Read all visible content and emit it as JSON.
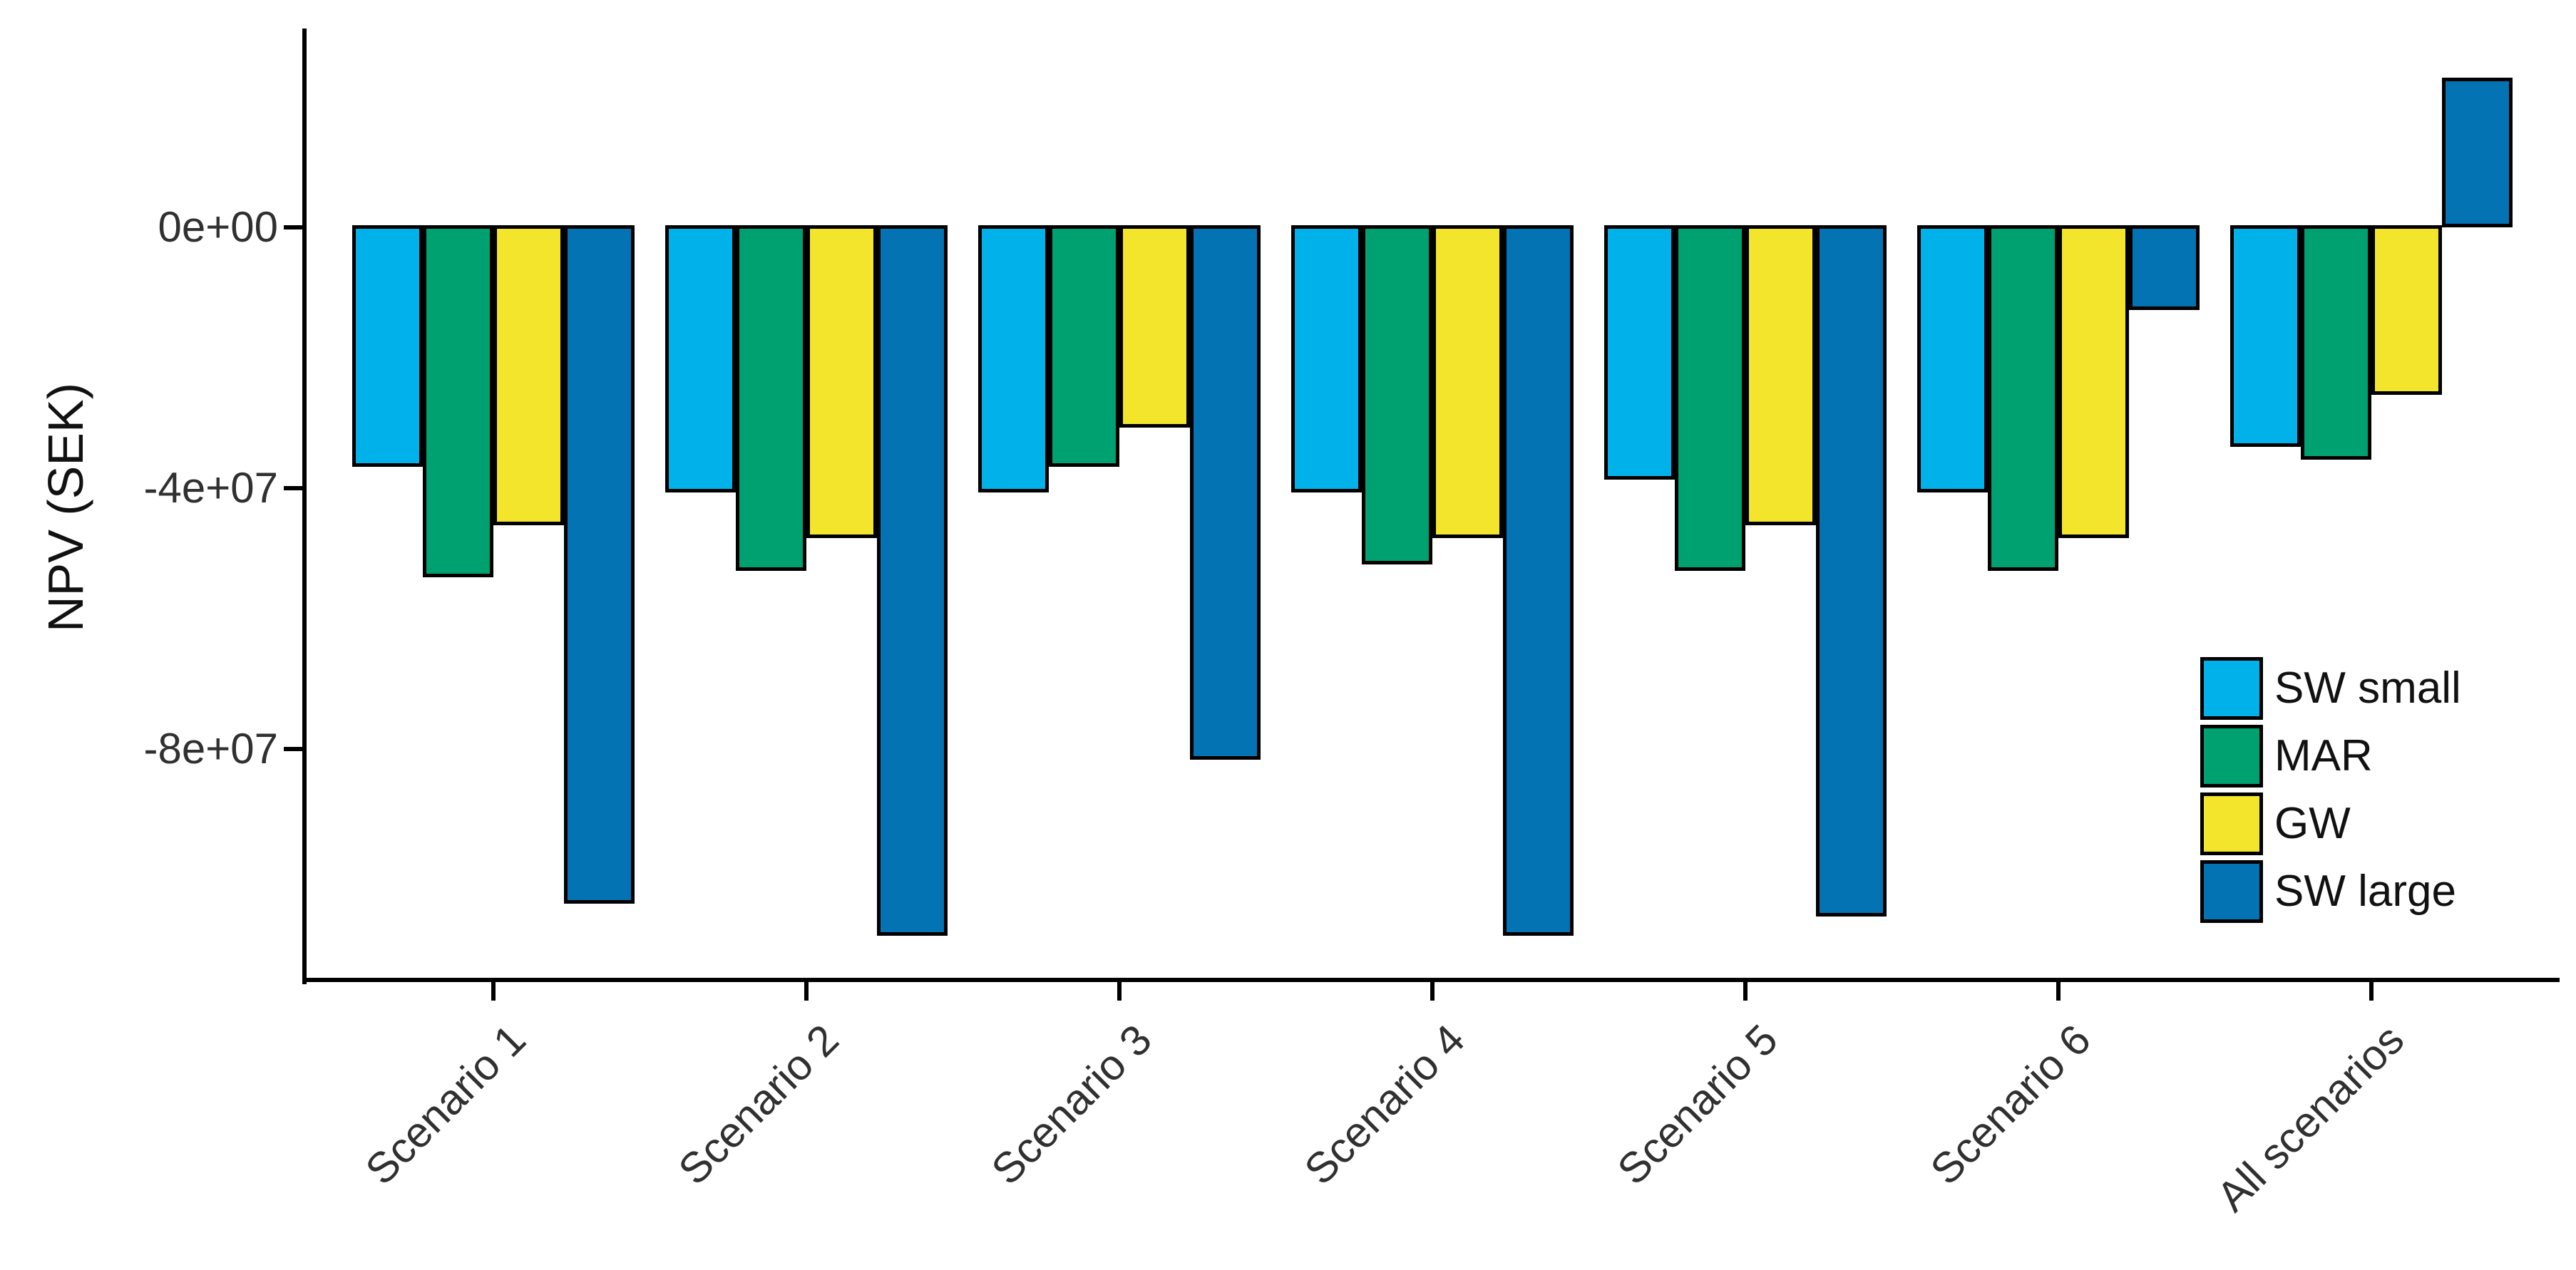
{
  "chart_data": {
    "type": "bar",
    "title": "",
    "xlabel": "",
    "ylabel": "NPV (SEK)",
    "categories": [
      "Scenario 1",
      "Scenario 2",
      "Scenario 3",
      "Scenario 4",
      "Scenario 5",
      "Scenario 6",
      "All scenarios"
    ],
    "series": [
      {
        "name": "SW small",
        "color": "#00B1EA",
        "values": [
          -37000000,
          -41000000,
          -41000000,
          -41000000,
          -39000000,
          -41000000,
          -34000000
        ]
      },
      {
        "name": "MAR",
        "color": "#00A170",
        "values": [
          -54000000,
          -53000000,
          -37000000,
          -52000000,
          -53000000,
          -53000000,
          -36000000
        ]
      },
      {
        "name": "GW",
        "color": "#F2E52B",
        "values": [
          -46000000,
          -48000000,
          -31000000,
          -48000000,
          -46000000,
          -48000000,
          -26000000
        ]
      },
      {
        "name": "SW large",
        "color": "#0473B3",
        "values": [
          -104000000,
          -109000000,
          -82000000,
          -109000000,
          -106000000,
          -13000000,
          23000000
        ]
      }
    ],
    "y_ticks": [
      {
        "label": "0e+00",
        "value": 0
      },
      {
        "label": "-4e+07",
        "value": -40000000
      },
      {
        "label": "-8e+07",
        "value": -80000000
      }
    ],
    "ylim": [
      -115000000,
      30500000
    ],
    "grid": false,
    "legend_position": "inside-right",
    "bar_outline_color": "#000000",
    "axis_color": "#000000",
    "tick_label_color": "#303030"
  }
}
